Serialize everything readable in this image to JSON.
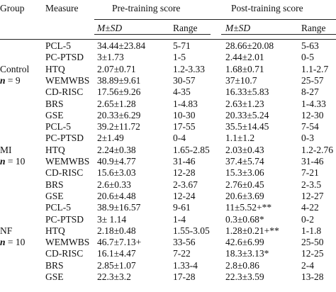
{
  "headers": {
    "group": "Group",
    "measure": "Measure",
    "pre": "Pre-training score",
    "post": "Post-training score",
    "pre_msd": "M±SD",
    "pre_range": "Range",
    "post_msd": "M±SD",
    "post_range": "Range"
  },
  "groups": [
    {
      "name": "Control",
      "n_label": "n",
      "n_value": " = 9"
    },
    {
      "name": "MI",
      "n_label": "n",
      "n_value": " = 10"
    },
    {
      "name": "NF",
      "n_label": "n",
      "n_value": " = 10"
    }
  ],
  "rows": [
    {
      "measure": "PCL-5",
      "pre_msd": "34.44±23.84",
      "pre_range": "5-71",
      "post_msd": "28.66±20.08",
      "post_range": "5-63"
    },
    {
      "measure": "PC-PTSD",
      "pre_msd": "3±1.73",
      "pre_range": "1-5",
      "post_msd": "2.44±2.01",
      "post_range": "0-5"
    },
    {
      "measure": "HTQ",
      "pre_msd": "2.07±0.71",
      "pre_range": "1.2-3.33",
      "post_msd": "1.68±0.71",
      "post_range": "1.1-2.7"
    },
    {
      "measure": "WEMWBS",
      "pre_msd": "38.89±9.61",
      "pre_range": "30-57",
      "post_msd": "37±10.7",
      "post_range": "25-57"
    },
    {
      "measure": "CD-RISC",
      "pre_msd": "17.56±9.26",
      "pre_range": "4-35",
      "post_msd": "16.33±5.83",
      "post_range": "8-27"
    },
    {
      "measure": "BRS",
      "pre_msd": "2.65±1.28",
      "pre_range": "1-4.83",
      "post_msd": "2.63±1.23",
      "post_range": "1-4.33"
    },
    {
      "measure": "GSE",
      "pre_msd": "20.33±6.29",
      "pre_range": "10-30",
      "post_msd": "20.33±5.24",
      "post_range": "12-30"
    },
    {
      "measure": "PCL-5",
      "pre_msd": "39.2±11.72",
      "pre_range": "17-55",
      "post_msd": "35.5±14.45",
      "post_range": "7-54"
    },
    {
      "measure": "PC-PTSD",
      "pre_msd": "2±1.49",
      "pre_range": "0-4",
      "post_msd": "1.1±1.2",
      "post_range": "0-3"
    },
    {
      "measure": "HTQ",
      "pre_msd": "2.24±0.38",
      "pre_range": "1.65-2.85",
      "post_msd": "2.03±0.43",
      "post_range": "1.2-2.76"
    },
    {
      "measure": "WEMWBS",
      "pre_msd": "40.9±4.77",
      "pre_range": "31-46",
      "post_msd": "37.4±5.74",
      "post_range": "31-46"
    },
    {
      "measure": "CD-RISC",
      "pre_msd": "15.6±3.03",
      "pre_range": "12-28",
      "post_msd": "15.3±3.06",
      "post_range": "7-21"
    },
    {
      "measure": "BRS",
      "pre_msd": "2.6±0.33",
      "pre_range": "2-3.67",
      "post_msd": "2.76±0.45",
      "post_range": "2-3.5"
    },
    {
      "measure": "GSE",
      "pre_msd": "20.6±4.48",
      "pre_range": "12-24",
      "post_msd": "20.6±3.69",
      "post_range": "12-27"
    },
    {
      "measure": "PCL-5",
      "pre_msd": "38.9±16.57",
      "pre_range": "9-61",
      "post_msd": "11±5.52+**",
      "post_range": "4-22"
    },
    {
      "measure": "PC-PTSD",
      "pre_msd": "3± 1.14",
      "pre_range": "1-4",
      "post_msd": "0.3±0.68*",
      "post_range": "0-2"
    },
    {
      "measure": "HTQ",
      "pre_msd": "2.18±0.48",
      "pre_range": "1.55-3.05",
      "post_msd": "1.28±0.21+**",
      "post_range": "1-1.8"
    },
    {
      "measure": "WEMWBS",
      "pre_msd": "46.7±7.13+",
      "pre_range": "33-56",
      "post_msd": "42.6±6.99",
      "post_range": "25-50"
    },
    {
      "measure": "CD-RISC",
      "pre_msd": "16.1±4.47",
      "pre_range": "7-22",
      "post_msd": "18.3±3.13*",
      "post_range": "12-25"
    },
    {
      "measure": "BRS",
      "pre_msd": "2.85±1.07",
      "pre_range": "1.33-4",
      "post_msd": "2.8±0.86",
      "post_range": "2-4"
    },
    {
      "measure": "GSE",
      "pre_msd": "22.3±3.2",
      "pre_range": "17-28",
      "post_msd": "22.3±3.59",
      "post_range": "13-28"
    }
  ]
}
